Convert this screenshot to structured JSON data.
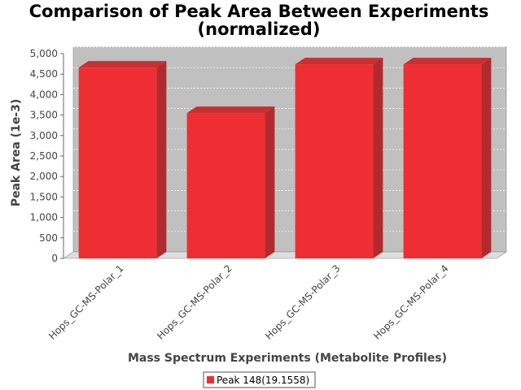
{
  "chart_data": {
    "type": "bar",
    "title_line1": "Comparison of Peak Area Between Experiments",
    "title_line2": "(normalized)",
    "xlabel": "Mass Spectrum Experiments (Metabolite Profiles)",
    "ylabel": "Peak Area (1e-3)",
    "categories": [
      "Hops_GC-MS-Polar_1",
      "Hops_GC-MS-Polar_2",
      "Hops_GC-MS-Polar_3",
      "Hops_GC-MS-Polar_4"
    ],
    "series": [
      {
        "name": "Peak 148(19.1558)",
        "values": [
          4660,
          3550,
          4740,
          4740
        ],
        "color": "#ee2e32"
      }
    ],
    "ylim": [
      0,
      5000
    ],
    "yticks": [
      0,
      500,
      1000,
      1500,
      2000,
      2500,
      3000,
      3500,
      4000,
      4500,
      5000
    ],
    "ytick_labels": [
      "0",
      "500",
      "1,000",
      "1,500",
      "2,000",
      "2,500",
      "3,000",
      "3,500",
      "4,000",
      "4,500",
      "5,000"
    ],
    "grid": true,
    "legend_position": "bottom-center",
    "plot_background": "#c0c0c0"
  }
}
